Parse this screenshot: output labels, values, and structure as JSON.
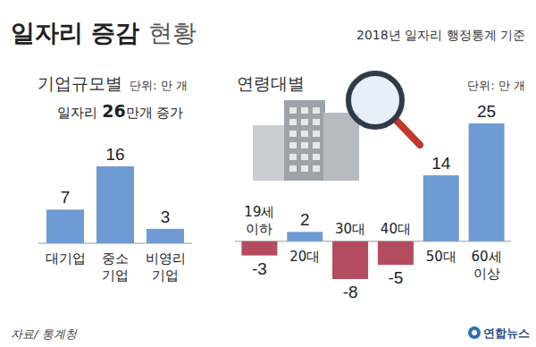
{
  "header": {
    "title": "일자리 증감 현황",
    "subtitle": "2018년 일자리 행정통계 기준"
  },
  "chart_data": [
    {
      "type": "bar",
      "title": "기업규모별",
      "subtitle": "단위: 만 개",
      "annotation": "일자리 26만개 증가",
      "categories": [
        "대기업",
        "중소\n기업",
        "비영리\n기업"
      ],
      "values": [
        7,
        16,
        3
      ],
      "color": "#6f9bd4",
      "ylim": [
        0,
        16
      ],
      "data_labels": true,
      "tick_labels": "x",
      "grid": false
    },
    {
      "type": "bar",
      "title": "연령대별",
      "subtitle": "단위: 만 개",
      "categories": [
        "19세\n이하",
        "20대",
        "30대",
        "40대",
        "50대",
        "60세\n이상"
      ],
      "values": [
        -3,
        2,
        -8,
        -5,
        14,
        25
      ],
      "colors": [
        "#b24c5e",
        "#6f9bd4",
        "#b24c5e",
        "#b24c5e",
        "#6f9bd4",
        "#6f9bd4"
      ],
      "ylim": [
        -8,
        25
      ],
      "data_labels": true,
      "tick_labels": "x",
      "grid": false
    }
  ],
  "footer": {
    "source": "자료/ 통계청",
    "logo": "연합뉴스"
  }
}
